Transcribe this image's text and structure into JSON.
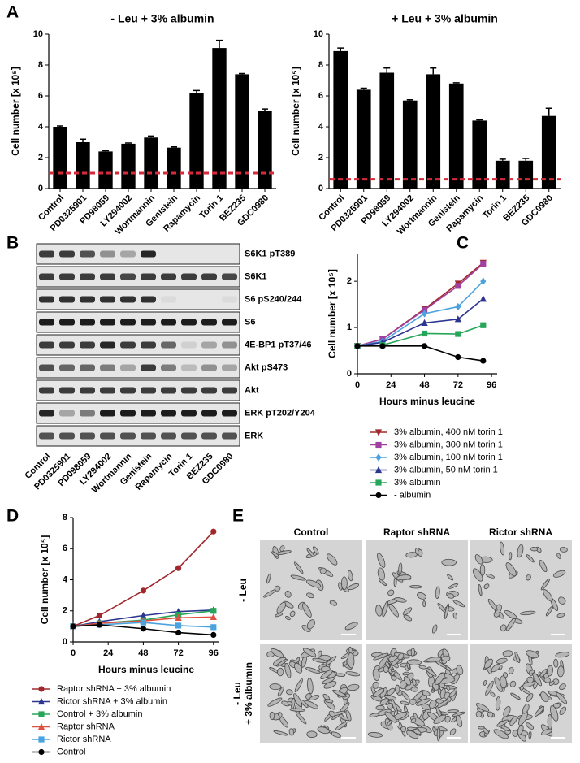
{
  "panels": [
    "A",
    "B",
    "C",
    "D",
    "E"
  ],
  "chart_data": [
    {
      "type": "bar",
      "title": "- Leu + 3% albumin",
      "y_label": "Cell number [x 10⁵]",
      "categories": [
        "Control",
        "PD0325901",
        "PD98059",
        "LY294002",
        "Wortmannin",
        "Genistein",
        "Rapamycin",
        "Torin 1",
        "BEZ235",
        "GDC0980"
      ],
      "values": [
        4.0,
        3.0,
        2.4,
        2.9,
        3.3,
        2.65,
        6.2,
        9.1,
        7.4,
        5.0
      ],
      "errors": [
        0.05,
        0.2,
        0.05,
        0.05,
        0.1,
        0.05,
        0.15,
        0.5,
        0.05,
        0.15
      ],
      "color": "#000000",
      "ref_line": 1.0,
      "ref_color": "#d62a3a",
      "ylim": [
        0,
        10
      ],
      "yticks": [
        0,
        2,
        4,
        6,
        8,
        10
      ]
    },
    {
      "type": "bar",
      "title": "+ Leu + 3% albumin",
      "y_label": "Cell number [x 10⁵]",
      "categories": [
        "Control",
        "PD0325901",
        "PD98059",
        "LY294002",
        "Wortmannin",
        "Genistein",
        "Rapamycin",
        "Torin 1",
        "BEZ235",
        "GDC0980"
      ],
      "values": [
        8.9,
        6.4,
        7.5,
        5.7,
        7.4,
        6.8,
        4.4,
        1.8,
        1.8,
        4.7
      ],
      "errors": [
        0.2,
        0.1,
        0.3,
        0.05,
        0.4,
        0.05,
        0.05,
        0.1,
        0.15,
        0.5
      ],
      "color": "#000000",
      "ref_line": 0.6,
      "ref_color": "#d62a3a",
      "ylim": [
        0,
        10
      ],
      "yticks": [
        0,
        2,
        4,
        6,
        8,
        10
      ]
    },
    {
      "type": "line",
      "x_label": "Hours minus leucine",
      "y_label": "Cell number [x 10⁵]",
      "x": [
        0,
        18,
        48,
        72,
        90
      ],
      "series": [
        {
          "name": "3% albumin, 400 nM torin 1",
          "color": "#a0282d",
          "marker": "triangle-down",
          "values": [
            0.6,
            0.75,
            1.4,
            1.95,
            2.4
          ]
        },
        {
          "name": "3% albumin, 300 nM torin 1",
          "color": "#a040a0",
          "marker": "square",
          "values": [
            0.6,
            0.75,
            1.38,
            1.9,
            2.38
          ]
        },
        {
          "name": "3% albumin, 100 nM torin 1",
          "color": "#4aa3df",
          "marker": "diamond",
          "values": [
            0.6,
            0.7,
            1.3,
            1.45,
            2.0
          ]
        },
        {
          "name": "3% albumin, 50 nM torin 1",
          "color": "#2c3590",
          "marker": "triangle-up",
          "values": [
            0.6,
            0.68,
            1.1,
            1.18,
            1.62
          ]
        },
        {
          "name": "3% albumin",
          "color": "#27a65a",
          "marker": "square",
          "values": [
            0.6,
            0.62,
            0.87,
            0.86,
            1.05
          ]
        },
        {
          "name": "- albumin",
          "color": "#000000",
          "marker": "circle",
          "values": [
            0.6,
            0.6,
            0.6,
            0.36,
            0.28
          ]
        }
      ],
      "xlim": [
        0,
        100
      ],
      "xticks": [
        0,
        24,
        48,
        72,
        96
      ],
      "ylim": [
        0,
        2.6
      ],
      "yticks": [
        0,
        1,
        2
      ]
    },
    {
      "type": "line",
      "x_label": "Hours minus leucine",
      "y_label": "Cell number [x 10⁵]",
      "x": [
        0,
        18,
        48,
        72,
        96
      ],
      "series": [
        {
          "name": "Raptor shRNA + 3% albumin",
          "color": "#a0282d",
          "marker": "circle",
          "values": [
            1.0,
            1.7,
            3.3,
            4.75,
            7.1
          ]
        },
        {
          "name": "Rictor shRNA + 3% albumin",
          "color": "#2c3590",
          "marker": "triangle-up",
          "values": [
            1.0,
            1.3,
            1.7,
            1.95,
            2.05
          ]
        },
        {
          "name": "Control + 3% albumin",
          "color": "#27a65a",
          "marker": "square",
          "values": [
            1.0,
            1.2,
            1.4,
            1.75,
            2.0
          ]
        },
        {
          "name": "Raptor shRNA",
          "color": "#e05040",
          "marker": "triangle-up",
          "values": [
            1.0,
            1.2,
            1.35,
            1.55,
            1.6
          ]
        },
        {
          "name": "Rictor shRNA",
          "color": "#4aa3df",
          "marker": "square",
          "values": [
            1.0,
            1.1,
            1.25,
            1.05,
            0.95
          ]
        },
        {
          "name": "Control",
          "color": "#000000",
          "marker": "circle",
          "values": [
            1.0,
            1.1,
            0.85,
            0.6,
            0.45
          ]
        }
      ],
      "xlim": [
        0,
        100
      ],
      "xticks": [
        0,
        24,
        48,
        72,
        96
      ],
      "ylim": [
        0,
        8
      ],
      "yticks": [
        0,
        2,
        4,
        6,
        8
      ]
    }
  ],
  "blot": {
    "rows": [
      "S6K1 pT389",
      "S6K1",
      "S6 pS240/244",
      "S6",
      "4E-BP1 pT37/46",
      "Akt pS473",
      "Akt",
      "ERK pT202/Y204",
      "ERK"
    ],
    "lanes": [
      "Control",
      "PD0325901",
      "PD098059",
      "LY294002",
      "Wortmannin",
      "Genistein",
      "Rapamycin",
      "Torin 1",
      "BEZ235",
      "GDC0980"
    ]
  },
  "micrographs": {
    "columns": [
      "Control",
      "Raptor shRNA",
      "Rictor shRNA"
    ],
    "rows": [
      [
        "- Leu"
      ],
      [
        "- Leu",
        "+ 3% albumin"
      ]
    ]
  }
}
